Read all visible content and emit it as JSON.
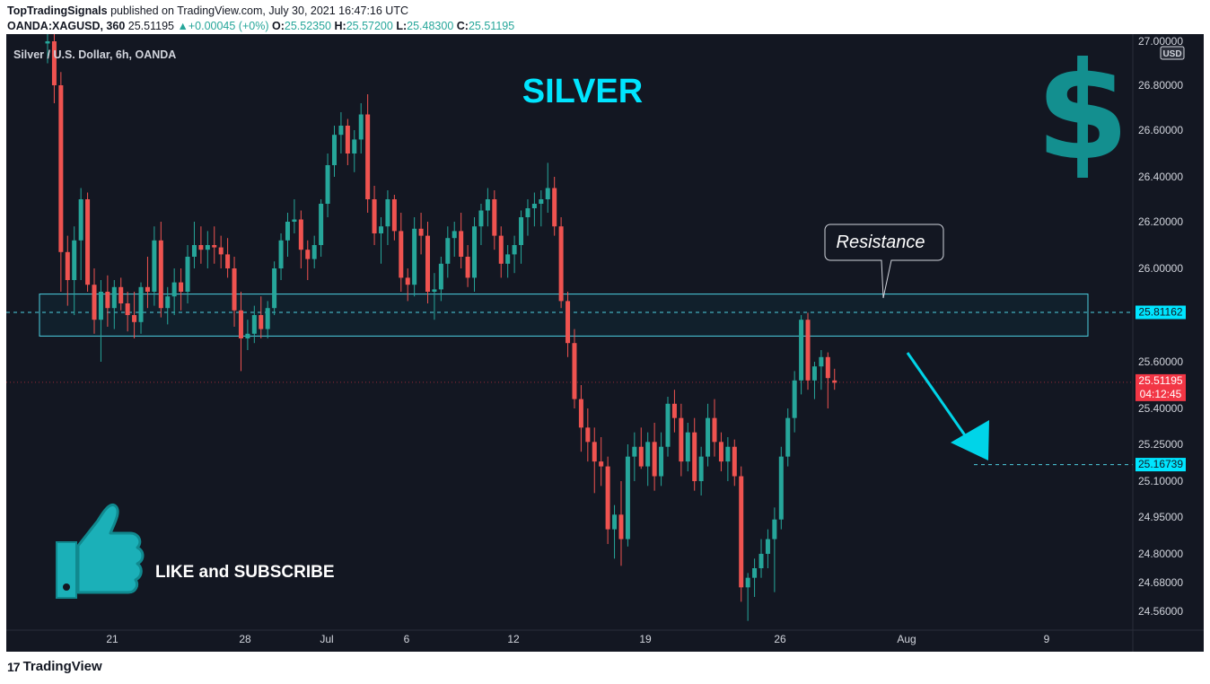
{
  "header": {
    "publisher": "TopTradingSignals",
    "published_text": " published on TradingView.com, July 30, 2021 16:47:16 UTC",
    "symbol": "OANDA:XAGUSD, 360",
    "last": "25.51195",
    "change": "+0.00045 (+0%)",
    "o_label": "O:",
    "o_value": "25.52350",
    "h_label": "H:",
    "h_value": "25.57200",
    "l_label": "L:",
    "l_value": "25.48300",
    "c_label": "C:",
    "c_value": "25.51195"
  },
  "chart_data": {
    "type": "candlestick",
    "title": "Silver / U.S. Dollar, 6h, OANDA",
    "headline": "SILVER",
    "currency_badge": "USD",
    "y_ticks": [
      "27.00000",
      "26.80000",
      "26.60000",
      "26.40000",
      "26.20000",
      "26.00000",
      "25.60000",
      "25.40000",
      "25.25000",
      "25.10000",
      "24.95000",
      "24.80000",
      "24.68000",
      "24.56000"
    ],
    "x_ticks": [
      "21",
      "28",
      "Jul",
      "6",
      "12",
      "19",
      "26",
      "Aug",
      "9"
    ],
    "resistance_zone": [
      25.71,
      25.89
    ],
    "resistance_label": "Resistance",
    "price_labels": [
      {
        "value": "25.81162",
        "color": "#00e5ff"
      },
      {
        "value": "25.51195",
        "color": "#f23645"
      },
      {
        "value": "25.16739",
        "color": "#00e5ff"
      }
    ],
    "countdown": "04:12:45",
    "target_level": 25.16739,
    "resistance_level": 25.81162,
    "annotation_text": "LIKE and SUBSCRIBE",
    "candles": [
      [
        26.99,
        27.04,
        26.9,
        27.0
      ],
      [
        27.0,
        27.05,
        26.72,
        26.8
      ],
      [
        26.8,
        26.86,
        25.9,
        26.07
      ],
      [
        26.07,
        26.14,
        25.84,
        25.95
      ],
      [
        25.95,
        26.18,
        25.8,
        26.12
      ],
      [
        26.12,
        26.35,
        25.95,
        26.3
      ],
      [
        26.3,
        26.33,
        25.9,
        25.93
      ],
      [
        25.93,
        26.0,
        25.72,
        25.78
      ],
      [
        25.78,
        25.95,
        25.6,
        25.9
      ],
      [
        25.9,
        25.97,
        25.75,
        25.83
      ],
      [
        25.83,
        25.95,
        25.74,
        25.92
      ],
      [
        25.92,
        25.96,
        25.82,
        25.85
      ],
      [
        25.85,
        25.9,
        25.73,
        25.8
      ],
      [
        25.8,
        25.9,
        25.7,
        25.77
      ],
      [
        25.77,
        25.94,
        25.72,
        25.92
      ],
      [
        25.92,
        26.05,
        25.83,
        25.9
      ],
      [
        25.9,
        26.18,
        25.84,
        26.12
      ],
      [
        26.12,
        26.2,
        25.79,
        25.83
      ],
      [
        25.83,
        25.92,
        25.76,
        25.88
      ],
      [
        25.88,
        26.0,
        25.8,
        25.94
      ],
      [
        25.94,
        26.0,
        25.82,
        25.9
      ],
      [
        25.9,
        26.1,
        25.85,
        26.05
      ],
      [
        26.05,
        26.2,
        26.0,
        26.1
      ],
      [
        26.1,
        26.18,
        26.02,
        26.08
      ],
      [
        26.08,
        26.16,
        26.0,
        26.1
      ],
      [
        26.1,
        26.18,
        26.02,
        26.09
      ],
      [
        26.09,
        26.14,
        26.0,
        26.06
      ],
      [
        26.06,
        26.13,
        25.96,
        26.0
      ],
      [
        26.0,
        26.05,
        25.75,
        25.82
      ],
      [
        25.82,
        25.9,
        25.56,
        25.7
      ],
      [
        25.7,
        25.78,
        25.65,
        25.72
      ],
      [
        25.72,
        25.84,
        25.68,
        25.8
      ],
      [
        25.8,
        25.88,
        25.7,
        25.74
      ],
      [
        25.74,
        25.86,
        25.7,
        25.83
      ],
      [
        25.83,
        26.03,
        25.8,
        26.0
      ],
      [
        26.0,
        26.15,
        25.95,
        26.12
      ],
      [
        26.12,
        26.24,
        26.05,
        26.2
      ],
      [
        26.2,
        26.3,
        26.15,
        26.21
      ],
      [
        26.21,
        26.25,
        26.0,
        26.08
      ],
      [
        26.08,
        26.12,
        25.95,
        26.04
      ],
      [
        26.04,
        26.14,
        26.0,
        26.1
      ],
      [
        26.1,
        26.3,
        26.05,
        26.28
      ],
      [
        26.28,
        26.5,
        26.22,
        26.45
      ],
      [
        26.45,
        26.62,
        26.4,
        26.58
      ],
      [
        26.58,
        26.68,
        26.5,
        26.62
      ],
      [
        26.62,
        26.65,
        26.45,
        26.5
      ],
      [
        26.5,
        26.6,
        26.42,
        26.56
      ],
      [
        26.56,
        26.72,
        26.5,
        26.67
      ],
      [
        26.67,
        26.76,
        26.24,
        26.3
      ],
      [
        26.3,
        26.36,
        26.1,
        26.15
      ],
      [
        26.15,
        26.22,
        26.02,
        26.18
      ],
      [
        26.18,
        26.34,
        26.1,
        26.3
      ],
      [
        26.3,
        26.32,
        26.12,
        26.16
      ],
      [
        26.16,
        26.24,
        25.9,
        25.96
      ],
      [
        25.96,
        26.0,
        25.86,
        25.93
      ],
      [
        25.93,
        26.22,
        25.88,
        26.17
      ],
      [
        26.17,
        26.24,
        26.06,
        26.14
      ],
      [
        26.14,
        26.2,
        25.85,
        25.9
      ],
      [
        25.9,
        25.98,
        25.78,
        25.91
      ],
      [
        25.91,
        26.05,
        25.86,
        26.02
      ],
      [
        26.02,
        26.18,
        25.96,
        26.13
      ],
      [
        26.13,
        26.2,
        26.05,
        26.16
      ],
      [
        26.16,
        26.24,
        26.0,
        26.05
      ],
      [
        26.05,
        26.1,
        25.92,
        25.96
      ],
      [
        25.96,
        26.22,
        25.9,
        26.18
      ],
      [
        26.18,
        26.28,
        26.1,
        26.25
      ],
      [
        26.25,
        26.35,
        26.18,
        26.3
      ],
      [
        26.3,
        26.34,
        26.08,
        26.14
      ],
      [
        26.14,
        26.18,
        25.96,
        26.02
      ],
      [
        26.02,
        26.1,
        25.96,
        26.06
      ],
      [
        26.06,
        26.14,
        25.98,
        26.1
      ],
      [
        26.1,
        26.25,
        26.02,
        26.22
      ],
      [
        26.22,
        26.3,
        26.14,
        26.26
      ],
      [
        26.26,
        26.33,
        26.18,
        26.28
      ],
      [
        26.28,
        26.34,
        26.18,
        26.3
      ],
      [
        26.3,
        26.46,
        26.24,
        26.35
      ],
      [
        26.35,
        26.4,
        26.14,
        26.18
      ],
      [
        26.18,
        26.22,
        25.83,
        25.86
      ],
      [
        25.86,
        25.9,
        25.62,
        25.68
      ],
      [
        25.68,
        25.74,
        25.4,
        25.44
      ],
      [
        25.44,
        25.5,
        25.22,
        25.32
      ],
      [
        25.32,
        25.4,
        25.18,
        25.26
      ],
      [
        25.26,
        25.32,
        25.05,
        25.18
      ],
      [
        25.18,
        25.28,
        25.08,
        25.16
      ],
      [
        25.16,
        25.2,
        24.84,
        24.9
      ],
      [
        24.9,
        25.0,
        24.78,
        24.96
      ],
      [
        24.96,
        25.1,
        24.75,
        24.86
      ],
      [
        24.86,
        25.25,
        24.83,
        25.2
      ],
      [
        25.2,
        25.3,
        25.1,
        25.24
      ],
      [
        25.24,
        25.32,
        25.15,
        25.16
      ],
      [
        25.16,
        25.3,
        25.08,
        25.26
      ],
      [
        25.26,
        25.34,
        25.06,
        25.12
      ],
      [
        25.12,
        25.3,
        25.08,
        25.24
      ],
      [
        25.24,
        25.45,
        25.2,
        25.42
      ],
      [
        25.42,
        25.48,
        25.3,
        25.36
      ],
      [
        25.36,
        25.42,
        25.12,
        25.18
      ],
      [
        25.18,
        25.34,
        25.14,
        25.3
      ],
      [
        25.3,
        25.36,
        25.06,
        25.1
      ],
      [
        25.1,
        25.24,
        25.04,
        25.2
      ],
      [
        25.2,
        25.42,
        25.16,
        25.36
      ],
      [
        25.36,
        25.44,
        25.2,
        25.26
      ],
      [
        25.26,
        25.3,
        25.14,
        25.18
      ],
      [
        25.18,
        25.28,
        25.1,
        25.24
      ],
      [
        25.24,
        25.27,
        25.08,
        25.12
      ],
      [
        25.12,
        25.16,
        24.6,
        24.66
      ],
      [
        24.66,
        24.72,
        24.52,
        24.7
      ],
      [
        24.7,
        24.78,
        24.62,
        24.74
      ],
      [
        24.74,
        24.86,
        24.7,
        24.8
      ],
      [
        24.8,
        24.9,
        24.74,
        24.86
      ],
      [
        24.86,
        24.99,
        24.64,
        24.94
      ],
      [
        24.94,
        25.24,
        24.9,
        25.2
      ],
      [
        25.2,
        25.4,
        25.16,
        25.36
      ],
      [
        25.36,
        25.56,
        25.3,
        25.52
      ],
      [
        25.52,
        25.8,
        25.46,
        25.78
      ],
      [
        25.78,
        25.81,
        25.48,
        25.52
      ],
      [
        25.52,
        25.6,
        25.44,
        25.58
      ],
      [
        25.58,
        25.65,
        25.48,
        25.62
      ],
      [
        25.62,
        25.64,
        25.4,
        25.53
      ],
      [
        25.52,
        25.57,
        25.48,
        25.51
      ]
    ]
  },
  "footer": {
    "brand": "TradingView",
    "logo": "17"
  }
}
